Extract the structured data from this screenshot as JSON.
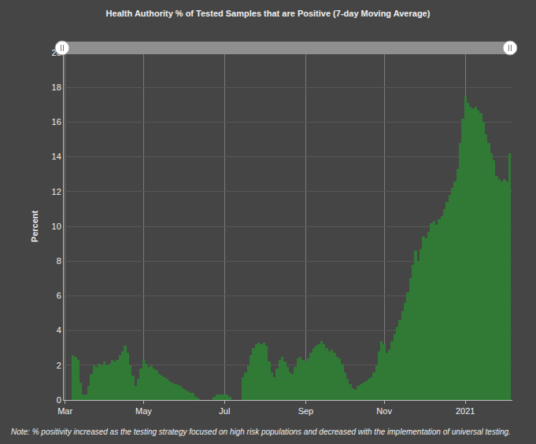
{
  "chart_data": {
    "type": "bar",
    "title": "Health Authority % of Tested Samples that are Positive (7-day Moving Average)",
    "y_label": "Percent",
    "annotations": [
      "Note: % positivity increased as the testing strategy focused on high risk populations and decreased with the implementation of universal testing."
    ],
    "color": "#307a36",
    "grid": true,
    "ylim": [
      0,
      20
    ],
    "yticks": [
      0,
      2,
      4,
      6,
      8,
      10,
      12,
      14,
      16,
      18,
      20
    ],
    "categories": [
      "Mar",
      null,
      null,
      null,
      null,
      null,
      null,
      null,
      null,
      null,
      null,
      null,
      null,
      null,
      null,
      null,
      null,
      null,
      null,
      null,
      null,
      null,
      null,
      null,
      null,
      null,
      null,
      null,
      null,
      null,
      "May",
      null,
      null,
      null,
      null,
      null,
      null,
      null,
      null,
      null,
      null,
      null,
      null,
      null,
      null,
      null,
      null,
      null,
      null,
      null,
      null,
      null,
      null,
      null,
      null,
      null,
      null,
      null,
      null,
      null,
      null,
      "Jul",
      null,
      null,
      null,
      null,
      null,
      null,
      null,
      null,
      null,
      null,
      null,
      null,
      null,
      null,
      null,
      null,
      null,
      null,
      null,
      null,
      null,
      null,
      null,
      null,
      null,
      null,
      null,
      null,
      null,
      null,
      "Sep",
      null,
      null,
      null,
      null,
      null,
      null,
      null,
      null,
      null,
      null,
      null,
      null,
      null,
      null,
      null,
      null,
      null,
      null,
      null,
      null,
      null,
      null,
      null,
      null,
      null,
      null,
      null,
      null,
      null,
      "Nov",
      null,
      null,
      null,
      null,
      null,
      null,
      null,
      null,
      null,
      null,
      null,
      null,
      null,
      null,
      null,
      null,
      null,
      null,
      null,
      null,
      null,
      null,
      null,
      null,
      null,
      null,
      null,
      null,
      null,
      null,
      "2021",
      null,
      null,
      null,
      null,
      null,
      null,
      null,
      null,
      null,
      null,
      null,
      null,
      null,
      null,
      null,
      null,
      null
    ],
    "values": [
      null,
      null,
      null,
      2.6,
      2.5,
      2.3,
      1.0,
      0.3,
      0.3,
      0.8,
      1.5,
      2.0,
      1.9,
      2.1,
      2.0,
      2.2,
      2.0,
      2.1,
      2.3,
      2.2,
      2.3,
      2.6,
      2.8,
      3.1,
      2.7,
      2.0,
      1.4,
      0.8,
      1.2,
      1.8,
      2.3,
      2.1,
      1.9,
      2.0,
      1.8,
      1.7,
      1.5,
      1.4,
      1.3,
      1.2,
      1.1,
      1.0,
      0.9,
      0.9,
      0.8,
      0.7,
      0.6,
      0.5,
      0.4,
      0.4,
      0.2,
      0.1,
      0,
      0,
      0,
      0,
      0,
      0.2,
      0.3,
      0.3,
      0.3,
      0.3,
      0.3,
      0.2,
      0,
      0,
      0,
      0,
      1.3,
      1.6,
      2.0,
      2.6,
      3.0,
      3.2,
      3.3,
      3.2,
      3.3,
      3.1,
      2.2,
      1.6,
      1.3,
      1.8,
      2.3,
      2.5,
      2.2,
      1.9,
      1.6,
      1.5,
      1.9,
      2.4,
      2.5,
      2.3,
      2.2,
      2.4,
      2.7,
      3.0,
      3.1,
      3.2,
      3.4,
      3.2,
      3.0,
      2.8,
      2.9,
      2.7,
      2.5,
      2.4,
      2.1,
      1.6,
      1.2,
      0.9,
      0.7,
      0.6,
      0.8,
      0.9,
      1.0,
      1.1,
      1.2,
      1.3,
      1.6,
      2.0,
      2.8,
      3.4,
      3.2,
      2.7,
      2.9,
      3.4,
      3.8,
      4.2,
      4.6,
      5.1,
      5.6,
      6.2,
      7.0,
      7.8,
      8.6,
      8.0,
      8.7,
      9.4,
      9.3,
      9.7,
      10.2,
      10.3,
      10.1,
      10.4,
      10.6,
      11.0,
      11.4,
      11.8,
      12.2,
      12.6,
      13.3,
      14.8,
      16.2,
      17.5,
      17.1,
      16.9,
      16.8,
      16.9,
      16.7,
      16.5,
      16.0,
      15.3,
      14.8,
      14.2,
      13.8,
      12.9,
      12.7,
      12.6,
      12.7,
      12.6,
      14.2
    ]
  }
}
